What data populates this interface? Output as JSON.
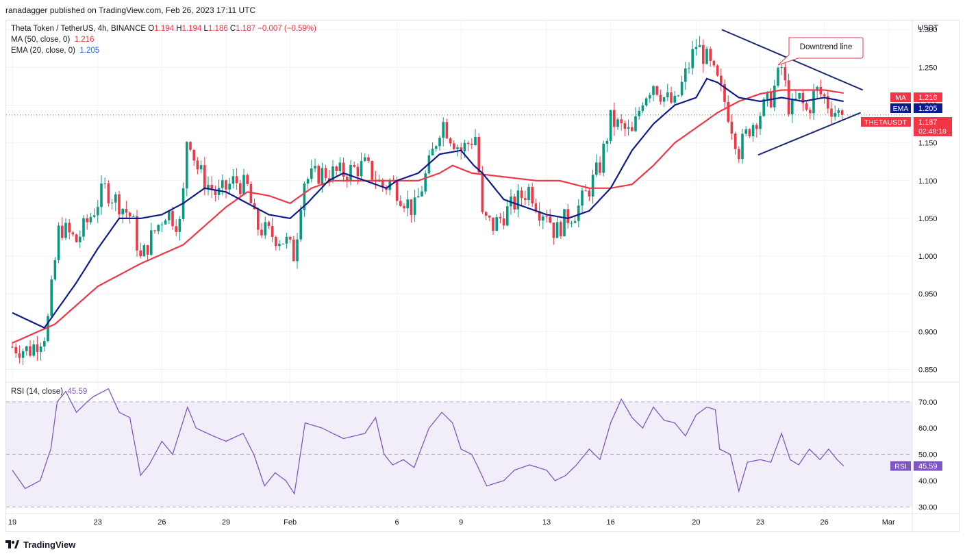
{
  "publisher": "ranadagger published on TradingView.com, Feb 26, 2023 17:11 UTC",
  "legend": {
    "symbol": "Theta Token / TetherUS, 4h, BINANCE",
    "o_label": "O",
    "o": "1.194",
    "h_label": "H",
    "h": "1.194",
    "l_label": "L",
    "l": "1.186",
    "c_label": "C",
    "c": "1.187",
    "change": "−0.007 (−0.59%)",
    "ma_label": "MA (50, close, 0)",
    "ma_value": "1.216",
    "ema_label": "EMA (20, close, 0)",
    "ema_value": "1.205",
    "rsi_label": "RSI (14, close)",
    "rsi_value": "45.59"
  },
  "currency": "USDT",
  "annotation": "Downtrend line",
  "badges": {
    "ma": {
      "label": "MA",
      "value": "1.216",
      "color": "#f23645"
    },
    "ema": {
      "label": "EMA",
      "value": "1.205",
      "color": "#0d1b8c"
    },
    "price": {
      "label": "THETAUSDT",
      "value": "1.187",
      "countdown": "02:48:18",
      "color": "#f23645"
    },
    "rsi": {
      "label": "RSI",
      "value": "45.59",
      "color": "#7e57c2"
    }
  },
  "footer_brand": "TradingView",
  "colors": {
    "up": "#089981",
    "down": "#f23645",
    "ema": "#0d1b8c",
    "ma": "#f23645",
    "rsi": "#7e57c2",
    "trendline": "#1b2a78",
    "rsi_band": "#ede7f6"
  },
  "chart_data": [
    {
      "type": "candlestick",
      "title": "Theta Token / TetherUS, 4h, BINANCE",
      "y_ticks": [
        "1.300",
        "1.250",
        "1.200",
        "1.150",
        "1.100",
        "1.050",
        "1.000",
        "0.950",
        "0.900",
        "0.850"
      ],
      "ylim": [
        0.835,
        1.312
      ],
      "x_ticks": [
        {
          "label": "19",
          "day": 0
        },
        {
          "label": "23",
          "day": 4
        },
        {
          "label": "26",
          "day": 7
        },
        {
          "label": "29",
          "day": 10
        },
        {
          "label": "Feb",
          "day": 13
        },
        {
          "label": "6",
          "day": 18
        },
        {
          "label": "9",
          "day": 21
        },
        {
          "label": "13",
          "day": 25
        },
        {
          "label": "16",
          "day": 28
        },
        {
          "label": "20",
          "day": 32
        },
        {
          "label": "23",
          "day": 35
        },
        {
          "label": "26",
          "day": 38
        },
        {
          "label": "Mar",
          "day": 41
        }
      ],
      "last_price": 1.187,
      "close_anchors": [
        [
          0,
          0.88
        ],
        [
          0.8,
          0.875
        ],
        [
          1.6,
          0.9
        ],
        [
          2.2,
          1.04
        ],
        [
          3,
          1.02
        ],
        [
          3.8,
          1.06
        ],
        [
          4.3,
          1.09
        ],
        [
          5,
          1.07
        ],
        [
          5.6,
          1.05
        ],
        [
          6,
          0.995
        ],
        [
          6.6,
          1.03
        ],
        [
          7.2,
          1.06
        ],
        [
          7.9,
          1.04
        ],
        [
          8.2,
          1.17
        ],
        [
          8.6,
          1.12
        ],
        [
          9,
          1.1
        ],
        [
          9.6,
          1.08
        ],
        [
          10.4,
          1.1
        ],
        [
          11,
          1.09
        ],
        [
          11.4,
          1.04
        ],
        [
          12,
          1.03
        ],
        [
          12.8,
          1.02
        ],
        [
          13.2,
          1.0
        ],
        [
          13.6,
          1.1
        ],
        [
          14.5,
          1.11
        ],
        [
          15.5,
          1.11
        ],
        [
          16.5,
          1.12
        ],
        [
          17.4,
          1.09
        ],
        [
          17.7,
          1.1
        ],
        [
          18.2,
          1.08
        ],
        [
          18.8,
          1.06
        ],
        [
          19.5,
          1.12
        ],
        [
          20.1,
          1.18
        ],
        [
          20.5,
          1.16
        ],
        [
          21,
          1.14
        ],
        [
          21.7,
          1.16
        ],
        [
          22,
          1.05
        ],
        [
          22.5,
          1.04
        ],
        [
          23.5,
          1.07
        ],
        [
          24.2,
          1.09
        ],
        [
          24.7,
          1.06
        ],
        [
          25,
          1.06
        ],
        [
          25.4,
          1.03
        ],
        [
          25.9,
          1.05
        ],
        [
          26.4,
          1.06
        ],
        [
          27,
          1.09
        ],
        [
          27.5,
          1.12
        ],
        [
          28,
          1.18
        ],
        [
          28.5,
          1.17
        ],
        [
          29,
          1.16
        ],
        [
          29.5,
          1.21
        ],
        [
          30,
          1.23
        ],
        [
          30.5,
          1.21
        ],
        [
          31,
          1.2
        ],
        [
          31.5,
          1.24
        ],
        [
          32,
          1.28
        ],
        [
          32.5,
          1.26
        ],
        [
          33,
          1.23
        ],
        [
          33.4,
          1.2
        ],
        [
          34,
          1.14
        ],
        [
          34.5,
          1.17
        ],
        [
          35,
          1.19
        ],
        [
          35.5,
          1.21
        ],
        [
          36,
          1.25
        ],
        [
          36.4,
          1.19
        ],
        [
          36.8,
          1.21
        ],
        [
          37.2,
          1.19
        ],
        [
          37.6,
          1.22
        ],
        [
          38,
          1.21
        ],
        [
          38.2,
          1.2
        ],
        [
          38.6,
          1.19
        ],
        [
          38.9,
          1.187
        ]
      ],
      "ma50_anchors": [
        [
          0,
          0.885
        ],
        [
          2,
          0.91
        ],
        [
          4,
          0.96
        ],
        [
          6,
          0.99
        ],
        [
          8,
          1.015
        ],
        [
          10,
          1.065
        ],
        [
          11,
          1.085
        ],
        [
          12,
          1.08
        ],
        [
          13,
          1.07
        ],
        [
          14,
          1.09
        ],
        [
          15,
          1.1
        ],
        [
          17,
          1.1
        ],
        [
          18,
          1.1
        ],
        [
          19,
          1.1
        ],
        [
          20,
          1.11
        ],
        [
          20.6,
          1.12
        ],
        [
          21.5,
          1.11
        ],
        [
          23,
          1.105
        ],
        [
          24.5,
          1.1
        ],
        [
          25.6,
          1.1
        ],
        [
          27,
          1.09
        ],
        [
          28,
          1.09
        ],
        [
          29,
          1.095
        ],
        [
          30,
          1.12
        ],
        [
          31,
          1.15
        ],
        [
          32,
          1.17
        ],
        [
          33,
          1.19
        ],
        [
          34,
          1.205
        ],
        [
          35,
          1.215
        ],
        [
          36,
          1.22
        ],
        [
          37,
          1.22
        ],
        [
          38,
          1.22
        ],
        [
          38.9,
          1.216
        ]
      ],
      "ema20_anchors": [
        [
          0,
          0.925
        ],
        [
          1.5,
          0.905
        ],
        [
          3,
          0.965
        ],
        [
          4,
          1.01
        ],
        [
          5,
          1.05
        ],
        [
          6,
          1.05
        ],
        [
          7,
          1.055
        ],
        [
          8,
          1.07
        ],
        [
          9,
          1.09
        ],
        [
          10,
          1.085
        ],
        [
          11,
          1.07
        ],
        [
          12,
          1.055
        ],
        [
          13,
          1.05
        ],
        [
          13.8,
          1.07
        ],
        [
          14.8,
          1.1
        ],
        [
          15.5,
          1.11
        ],
        [
          16.5,
          1.1
        ],
        [
          17.5,
          1.09
        ],
        [
          18,
          1.1
        ],
        [
          19,
          1.11
        ],
        [
          20,
          1.135
        ],
        [
          21,
          1.14
        ],
        [
          21.6,
          1.12
        ],
        [
          22,
          1.11
        ],
        [
          23,
          1.075
        ],
        [
          24,
          1.065
        ],
        [
          25,
          1.055
        ],
        [
          26,
          1.05
        ],
        [
          27,
          1.06
        ],
        [
          28,
          1.09
        ],
        [
          29,
          1.14
        ],
        [
          30,
          1.175
        ],
        [
          31,
          1.2
        ],
        [
          32,
          1.21
        ],
        [
          32.5,
          1.235
        ],
        [
          33,
          1.23
        ],
        [
          34,
          1.21
        ],
        [
          35,
          1.205
        ],
        [
          36,
          1.21
        ],
        [
          37,
          1.205
        ],
        [
          38,
          1.21
        ],
        [
          38.9,
          1.205
        ]
      ],
      "trendlines": [
        {
          "name": "downtrend",
          "from": [
            33.2,
            1.3
          ],
          "to": [
            39.8,
            1.22
          ]
        },
        {
          "name": "support",
          "from": [
            34.9,
            1.134
          ],
          "to": [
            39.7,
            1.19
          ]
        }
      ]
    },
    {
      "type": "line",
      "title": "RSI (14, close)",
      "y_ticks": [
        "70.00",
        "60.00",
        "50.00",
        "40.00",
        "30.00"
      ],
      "ylim": [
        28,
        77
      ],
      "band": [
        30,
        70
      ],
      "last": 45.59,
      "anchors": [
        [
          0,
          44
        ],
        [
          0.6,
          37
        ],
        [
          1.3,
          40
        ],
        [
          1.8,
          52
        ],
        [
          2.1,
          70
        ],
        [
          2.5,
          74
        ],
        [
          3,
          66
        ],
        [
          3.5,
          70
        ],
        [
          3.8,
          72
        ],
        [
          4.5,
          75
        ],
        [
          5,
          66
        ],
        [
          5.5,
          64
        ],
        [
          6,
          42
        ],
        [
          6.4,
          46
        ],
        [
          7,
          55
        ],
        [
          7.5,
          50
        ],
        [
          8.2,
          68
        ],
        [
          8.6,
          60
        ],
        [
          9.4,
          57
        ],
        [
          10,
          55
        ],
        [
          10.8,
          58
        ],
        [
          11.3,
          50
        ],
        [
          11.8,
          38
        ],
        [
          12.3,
          43
        ],
        [
          12.8,
          40
        ],
        [
          13.2,
          35
        ],
        [
          13.7,
          62
        ],
        [
          14.5,
          60
        ],
        [
          15.5,
          56
        ],
        [
          16.5,
          58
        ],
        [
          17,
          64
        ],
        [
          17.4,
          50
        ],
        [
          17.8,
          46
        ],
        [
          18.3,
          48
        ],
        [
          18.8,
          45
        ],
        [
          19.5,
          60
        ],
        [
          20.1,
          66
        ],
        [
          20.6,
          62
        ],
        [
          21,
          52
        ],
        [
          21.5,
          50
        ],
        [
          21.8,
          45
        ],
        [
          22.2,
          38
        ],
        [
          23,
          40
        ],
        [
          23.5,
          44
        ],
        [
          24.2,
          46
        ],
        [
          24.6,
          45
        ],
        [
          25,
          44
        ],
        [
          25.4,
          40
        ],
        [
          25.9,
          42
        ],
        [
          26.4,
          46
        ],
        [
          27,
          52
        ],
        [
          27.5,
          48
        ],
        [
          28,
          62
        ],
        [
          28.5,
          71
        ],
        [
          29,
          64
        ],
        [
          29.5,
          60
        ],
        [
          30,
          68
        ],
        [
          30.5,
          63
        ],
        [
          31,
          62
        ],
        [
          31.5,
          57
        ],
        [
          32,
          65
        ],
        [
          32.5,
          68
        ],
        [
          32.9,
          67
        ],
        [
          33.1,
          52
        ],
        [
          33.6,
          50
        ],
        [
          34,
          36
        ],
        [
          34.4,
          47
        ],
        [
          35,
          48
        ],
        [
          35.5,
          47
        ],
        [
          36,
          58
        ],
        [
          36.4,
          48
        ],
        [
          36.8,
          46
        ],
        [
          37.3,
          52
        ],
        [
          37.8,
          48
        ],
        [
          38.2,
          52
        ],
        [
          38.6,
          48
        ],
        [
          38.9,
          45.59
        ]
      ]
    }
  ]
}
